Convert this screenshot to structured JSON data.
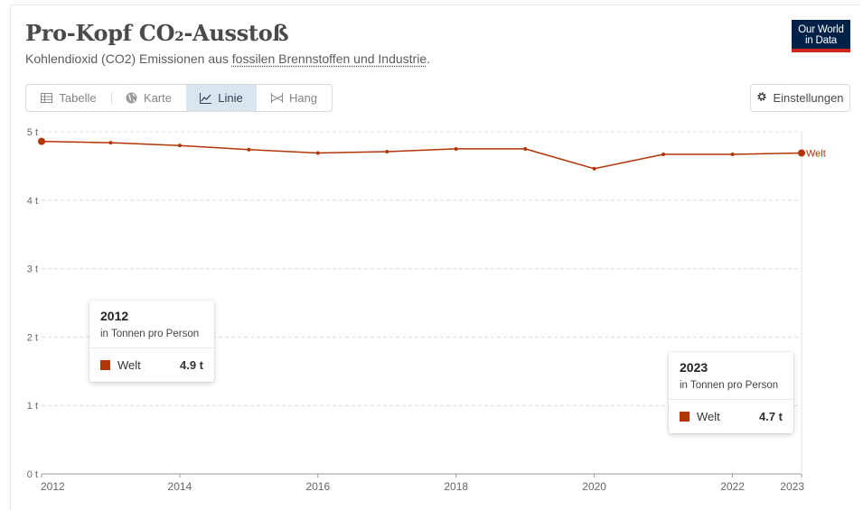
{
  "header": {
    "title": "Pro-Kopf CO₂-Ausstoß",
    "subtitle_prefix": "Kohlendioxid (CO2) Emissionen aus ",
    "subtitle_link": "fossilen Brennstoffen und Industrie",
    "subtitle_suffix": "."
  },
  "logo": {
    "line1": "Our World",
    "line2": "in Data"
  },
  "tabs": [
    {
      "label": "Tabelle",
      "icon": "table-icon",
      "active": false
    },
    {
      "label": "Karte",
      "icon": "globe-icon",
      "active": false
    },
    {
      "label": "Linie",
      "icon": "line-chart-icon",
      "active": true
    },
    {
      "label": "Hang",
      "icon": "slope-icon",
      "active": false
    }
  ],
  "settings": {
    "label": "Einstellungen",
    "icon": "gear-icon"
  },
  "colors": {
    "series": "#b13507",
    "active_tab": "#dbe5f0",
    "logo_bg": "#002147",
    "logo_accent": "#ce261e"
  },
  "chart_data": {
    "type": "line",
    "x": [
      2012,
      2013,
      2014,
      2015,
      2016,
      2017,
      2018,
      2019,
      2020,
      2021,
      2022,
      2023
    ],
    "series": [
      {
        "name": "Welt",
        "values": [
          4.86,
          4.84,
          4.8,
          4.74,
          4.69,
          4.71,
          4.75,
          4.75,
          4.46,
          4.67,
          4.67,
          4.69
        ]
      }
    ],
    "x_ticks": [
      "2012",
      "2014",
      "2016",
      "2018",
      "2020",
      "2022",
      "2023"
    ],
    "x_tick_values": [
      2012,
      2014,
      2016,
      2018,
      2020,
      2022,
      2023
    ],
    "y_ticks": [
      "0 t",
      "1 t",
      "2 t",
      "3 t",
      "4 t",
      "5 t"
    ],
    "y_tick_values": [
      0,
      1,
      2,
      3,
      4,
      5
    ],
    "xlim": [
      2012,
      2023
    ],
    "ylim": [
      0,
      5
    ],
    "grid": "horizontal dashed"
  },
  "tooltips": [
    {
      "year": "2012",
      "unit": "in Tonnen pro Person",
      "series": "Welt",
      "value": "4.9 t"
    },
    {
      "year": "2023",
      "unit": "in Tonnen pro Person",
      "series": "Welt",
      "value": "4.7 t"
    }
  ]
}
